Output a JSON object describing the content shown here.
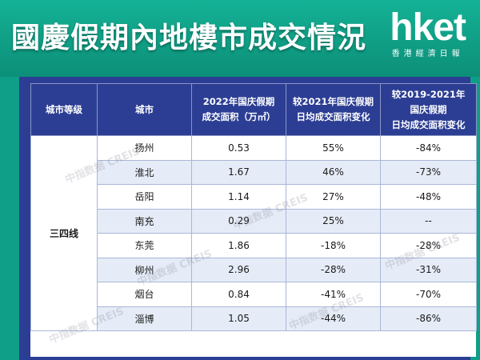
{
  "header": {
    "title": "國慶假期內地樓市成交情況",
    "logo_word": "hket",
    "logo_sub": "香港經濟日報"
  },
  "table": {
    "headers": {
      "tier": "城市等级",
      "city": "城市",
      "area_line1": "2022年国庆假期",
      "area_line2": "成交面积（万㎡）",
      "vs2021_line1": "较2021年国庆假期",
      "vs2021_line2": "日均成交面积变化",
      "vs2019_line1": "较2019-2021年",
      "vs2019_line2": "国庆假期",
      "vs2019_line3": "日均成交面积变化"
    },
    "tier_label": "三四线",
    "rows": [
      {
        "city": "扬州",
        "area": "0.53",
        "vs2021": "55%",
        "vs2019": "-84%"
      },
      {
        "city": "淮北",
        "area": "1.67",
        "vs2021": "46%",
        "vs2019": "-73%"
      },
      {
        "city": "岳阳",
        "area": "1.14",
        "vs2021": "27%",
        "vs2019": "-48%"
      },
      {
        "city": "南充",
        "area": "0.29",
        "vs2021": "25%",
        "vs2019": "--"
      },
      {
        "city": "东莞",
        "area": "1.86",
        "vs2021": "-18%",
        "vs2019": "-28%"
      },
      {
        "city": "柳州",
        "area": "2.96",
        "vs2021": "-28%",
        "vs2019": "-31%"
      },
      {
        "city": "烟台",
        "area": "0.84",
        "vs2021": "-41%",
        "vs2019": "-70%"
      },
      {
        "city": "淄博",
        "area": "1.05",
        "vs2021": "-44%",
        "vs2019": "-86%"
      }
    ]
  },
  "watermark": "中指数据 CREIS"
}
